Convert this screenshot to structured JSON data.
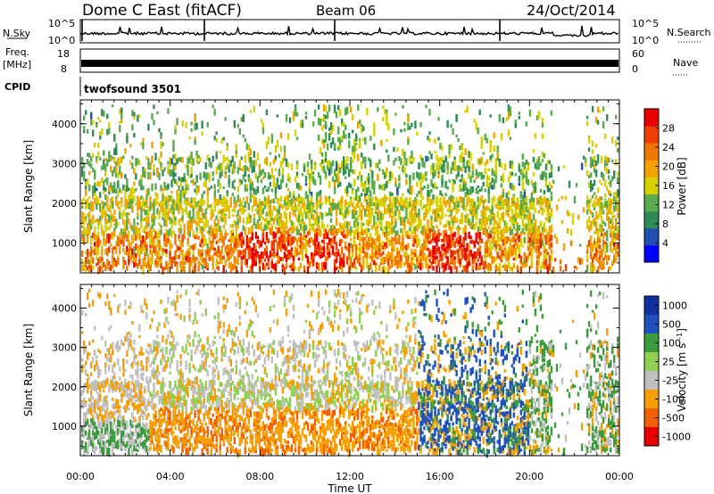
{
  "header": {
    "station": "Dome C East (fitACF)",
    "beam": "Beam 06",
    "date": "24/Oct/2014"
  },
  "summary": {
    "nsky_label": "N.Sky",
    "nsky_top": "10^5",
    "nsky_bottom": "10^0",
    "nsearch_label": "N.Search",
    "nsearch_top": "10^5",
    "nsearch_bottom": "10^0",
    "freq_label": "Freq.",
    "freq_unit": "[MHz]",
    "freq_top": "18",
    "freq_bottom": "8",
    "nave_label": "Nave",
    "nave_top": "60",
    "nave_bottom": "0",
    "cpid_label": "CPID",
    "cpid_value": "twofsound 3501"
  },
  "colors": {
    "power": [
      "#0000ff",
      "#1f4fb0",
      "#2e8b57",
      "#5aab4c",
      "#d8d000",
      "#f5a200",
      "#f07800",
      "#f04000",
      "#e60000"
    ],
    "velocity": [
      "#e60000",
      "#f06000",
      "#f5a000",
      "#c0c0c0",
      "#90d050",
      "#3c9c3c",
      "#2050c0",
      "#1030a0"
    ]
  },
  "chart_data": [
    {
      "type": "heatmap",
      "name": "power-panel",
      "xlabel": "",
      "ylabel": "Slant Range [km]",
      "ylim": [
        250,
        4600
      ],
      "xlim": [
        0,
        24
      ],
      "yticks": [
        1000,
        2000,
        3000,
        4000
      ],
      "colorbar": {
        "label": "Power [dB]",
        "ticks": [
          "4",
          "8",
          "12",
          "16",
          "20",
          "24",
          "28"
        ]
      }
    },
    {
      "type": "heatmap",
      "name": "velocity-panel",
      "xlabel": "Time UT",
      "ylabel": "Slant Range [km]",
      "ylim": [
        250,
        4600
      ],
      "xlim": [
        0,
        24
      ],
      "yticks": [
        1000,
        2000,
        3000,
        4000
      ],
      "xticks": [
        "00:00",
        "04:00",
        "08:00",
        "12:00",
        "16:00",
        "20:00",
        "00:00"
      ],
      "colorbar": {
        "label": "Velocity [m s^-1]",
        "ticks": [
          "1000",
          "500",
          "100",
          "25",
          "-25",
          "-100",
          "-500",
          "-1000"
        ]
      }
    }
  ]
}
